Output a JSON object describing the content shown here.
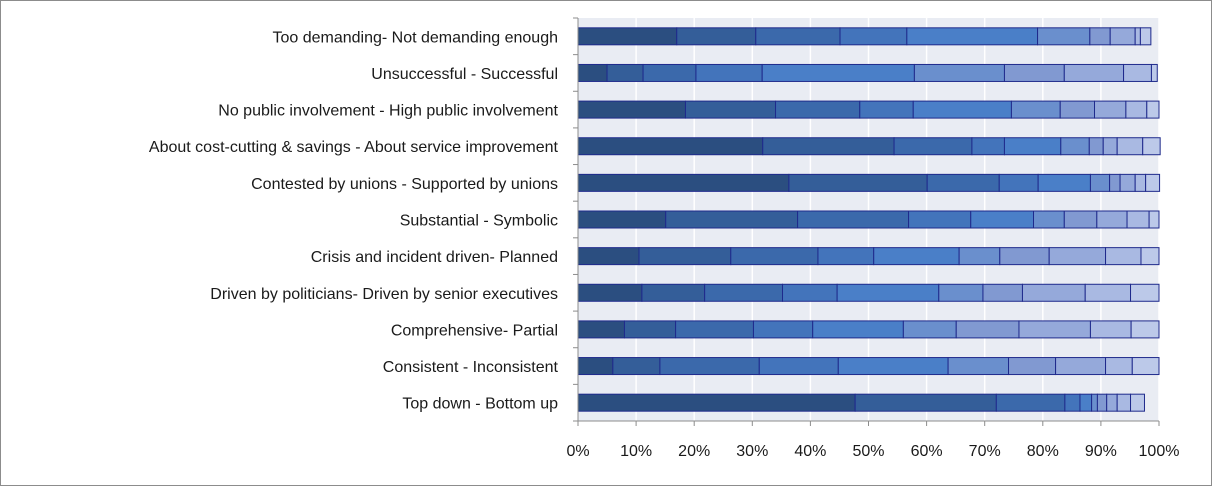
{
  "chart_data": {
    "type": "bar",
    "orientation": "horizontal",
    "stacked": true,
    "percent": true,
    "xlim": [
      0,
      100
    ],
    "grid": true,
    "categories": [
      "Too demanding- Not demanding enough",
      "Unsuccessful - Successful",
      "No public involvement - High public involvement",
      "About cost-cutting & savings - About service improvement",
      "Contested by unions - Supported by unions",
      "Substantial - Symbolic",
      "Crisis and incident driven- Planned",
      "Driven by politicians- Driven by senior executives",
      "Comprehensive- Partial",
      "Consistent - Inconsistent",
      "Top down - Bottom up"
    ],
    "x_ticks": [
      "0%",
      "10%",
      "20%",
      "30%",
      "40%",
      "50%",
      "60%",
      "70%",
      "80%",
      "90%",
      "100%"
    ],
    "series": [
      {
        "values": [
          17.0,
          5.0,
          18.5,
          31.8,
          36.3,
          15.1,
          10.5,
          11.0,
          8.0,
          6.0,
          47.7
        ]
      },
      {
        "values": [
          13.6,
          6.2,
          15.5,
          22.6,
          23.8,
          22.7,
          15.8,
          10.8,
          8.8,
          8.1,
          24.3
        ]
      },
      {
        "values": [
          14.5,
          9.1,
          14.5,
          13.4,
          12.4,
          19.1,
          15.0,
          13.4,
          13.4,
          17.1,
          11.8
        ]
      },
      {
        "values": [
          11.5,
          11.4,
          9.2,
          5.6,
          6.7,
          10.7,
          9.6,
          9.4,
          10.2,
          13.6,
          2.6
        ]
      },
      {
        "values": [
          22.5,
          26.2,
          16.9,
          9.7,
          9.0,
          10.8,
          14.7,
          17.5,
          15.6,
          18.9,
          2.0
        ]
      },
      {
        "values": [
          9.0,
          15.5,
          8.4,
          4.9,
          3.3,
          5.3,
          7.0,
          7.6,
          9.1,
          10.4,
          1.0
        ]
      },
      {
        "values": [
          3.5,
          10.3,
          5.9,
          2.4,
          1.8,
          5.6,
          8.5,
          6.8,
          10.8,
          8.1,
          1.6
        ]
      },
      {
        "values": [
          4.3,
          10.2,
          5.4,
          2.4,
          2.6,
          5.2,
          9.7,
          10.8,
          12.3,
          8.6,
          1.8
        ]
      },
      {
        "values": [
          0.9,
          4.8,
          3.6,
          4.4,
          1.8,
          3.8,
          6.1,
          7.8,
          7.0,
          4.6,
          2.3
        ]
      },
      {
        "values": [
          1.8,
          1.0,
          2.1,
          3.0,
          2.4,
          1.7,
          3.1,
          4.9,
          4.8,
          4.6,
          2.4
        ]
      }
    ],
    "colors": [
      "#2b4e80",
      "#345e99",
      "#3b69ab",
      "#4374bb",
      "#4a7fc8",
      "#6a8fcd",
      "#8199d1",
      "#95a9da",
      "#a9b9e2",
      "#bcc9e9"
    ],
    "bar_border_color": "#1f2a8c",
    "plot_background": "#e9ecf3",
    "grid_color": "#ffffff"
  }
}
